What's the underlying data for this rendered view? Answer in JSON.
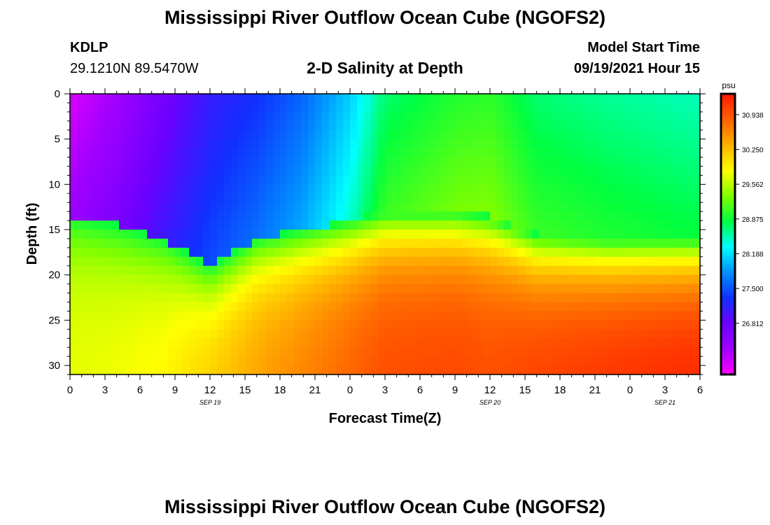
{
  "header": {
    "title": "Mississippi River Outflow Ocean Cube (NGOFS2)",
    "station": "KDLP",
    "coords": "29.1210N  89.5470W",
    "subtitle": "2-D Salinity at Depth",
    "start_label": "Model Start Time",
    "start_time": "09/19/2021 Hour 15"
  },
  "footer": {
    "title": "Mississippi River Outflow Ocean Cube (NGOFS2)"
  },
  "chart_data": {
    "type": "heatmap",
    "title": "2-D Salinity at Depth",
    "xlabel": "Forecast Time(Z)",
    "ylabel": "Depth (ft)",
    "xlim": [
      0,
      54
    ],
    "ylim": [
      0,
      31
    ],
    "x_ticks": [
      {
        "h": 0,
        "label": "0"
      },
      {
        "h": 3,
        "label": "3"
      },
      {
        "h": 6,
        "label": "6"
      },
      {
        "h": 9,
        "label": "9"
      },
      {
        "h": 12,
        "label": "12"
      },
      {
        "h": 15,
        "label": "15"
      },
      {
        "h": 18,
        "label": "18"
      },
      {
        "h": 21,
        "label": "21"
      },
      {
        "h": 24,
        "label": "0"
      },
      {
        "h": 27,
        "label": "3"
      },
      {
        "h": 30,
        "label": "6"
      },
      {
        "h": 33,
        "label": "9"
      },
      {
        "h": 36,
        "label": "12"
      },
      {
        "h": 39,
        "label": "15"
      },
      {
        "h": 42,
        "label": "18"
      },
      {
        "h": 45,
        "label": "21"
      },
      {
        "h": 48,
        "label": "0"
      },
      {
        "h": 51,
        "label": "3"
      },
      {
        "h": 54,
        "label": "6"
      }
    ],
    "date_labels": [
      {
        "h": 12,
        "label": "SEP 19"
      },
      {
        "h": 36,
        "label": "SEP 20"
      },
      {
        "h": 51,
        "label": "SEP 21"
      }
    ],
    "y_ticks": [
      0,
      5,
      10,
      15,
      20,
      25,
      30
    ],
    "colorbar": {
      "unit": "psu",
      "min": 25.8,
      "max": 31.35,
      "ticks": [
        "30.938",
        "30.250",
        "29.562",
        "28.875",
        "28.188",
        "27.500",
        "26.812"
      ],
      "colors": [
        "#ff00ff",
        "#a000ff",
        "#6a00ff",
        "#1030ff",
        "#0090ff",
        "#00ffff",
        "#00ff40",
        "#80ff00",
        "#ffff00",
        "#ffb000",
        "#ff6000",
        "#ff1800"
      ]
    },
    "time_profiles": [
      {
        "h": 0,
        "halocline_ft": 13.5,
        "surface_psu": 26.0,
        "bottom_psu": 29.75
      },
      {
        "h": 4,
        "halocline_ft": 14.5,
        "surface_psu": 26.3,
        "bottom_psu": 29.8
      },
      {
        "h": 8,
        "halocline_ft": 16.0,
        "surface_psu": 26.7,
        "bottom_psu": 29.9
      },
      {
        "h": 12,
        "halocline_ft": 19.0,
        "surface_psu": 27.1,
        "bottom_psu": 30.2
      },
      {
        "h": 16,
        "halocline_ft": 16.0,
        "surface_psu": 27.3,
        "bottom_psu": 30.45
      },
      {
        "h": 20,
        "halocline_ft": 15.0,
        "surface_psu": 27.6,
        "bottom_psu": 30.65
      },
      {
        "h": 24,
        "halocline_ft": 14.0,
        "surface_psu": 28.1,
        "bottom_psu": 30.85
      },
      {
        "h": 27,
        "halocline_ft": 13.0,
        "surface_psu": 28.7,
        "bottom_psu": 31.0
      },
      {
        "h": 33,
        "halocline_ft": 13.0,
        "surface_psu": 28.95,
        "bottom_psu": 31.05
      },
      {
        "h": 36,
        "halocline_ft": 13.5,
        "surface_psu": 29.0,
        "bottom_psu": 31.0
      },
      {
        "h": 40,
        "halocline_ft": 15.5,
        "surface_psu": 28.7,
        "bottom_psu": 31.1
      },
      {
        "h": 46,
        "halocline_ft": 16.0,
        "surface_psu": 28.6,
        "bottom_psu": 31.2
      },
      {
        "h": 54,
        "halocline_ft": 16.0,
        "surface_psu": 28.5,
        "bottom_psu": 31.3
      }
    ]
  }
}
